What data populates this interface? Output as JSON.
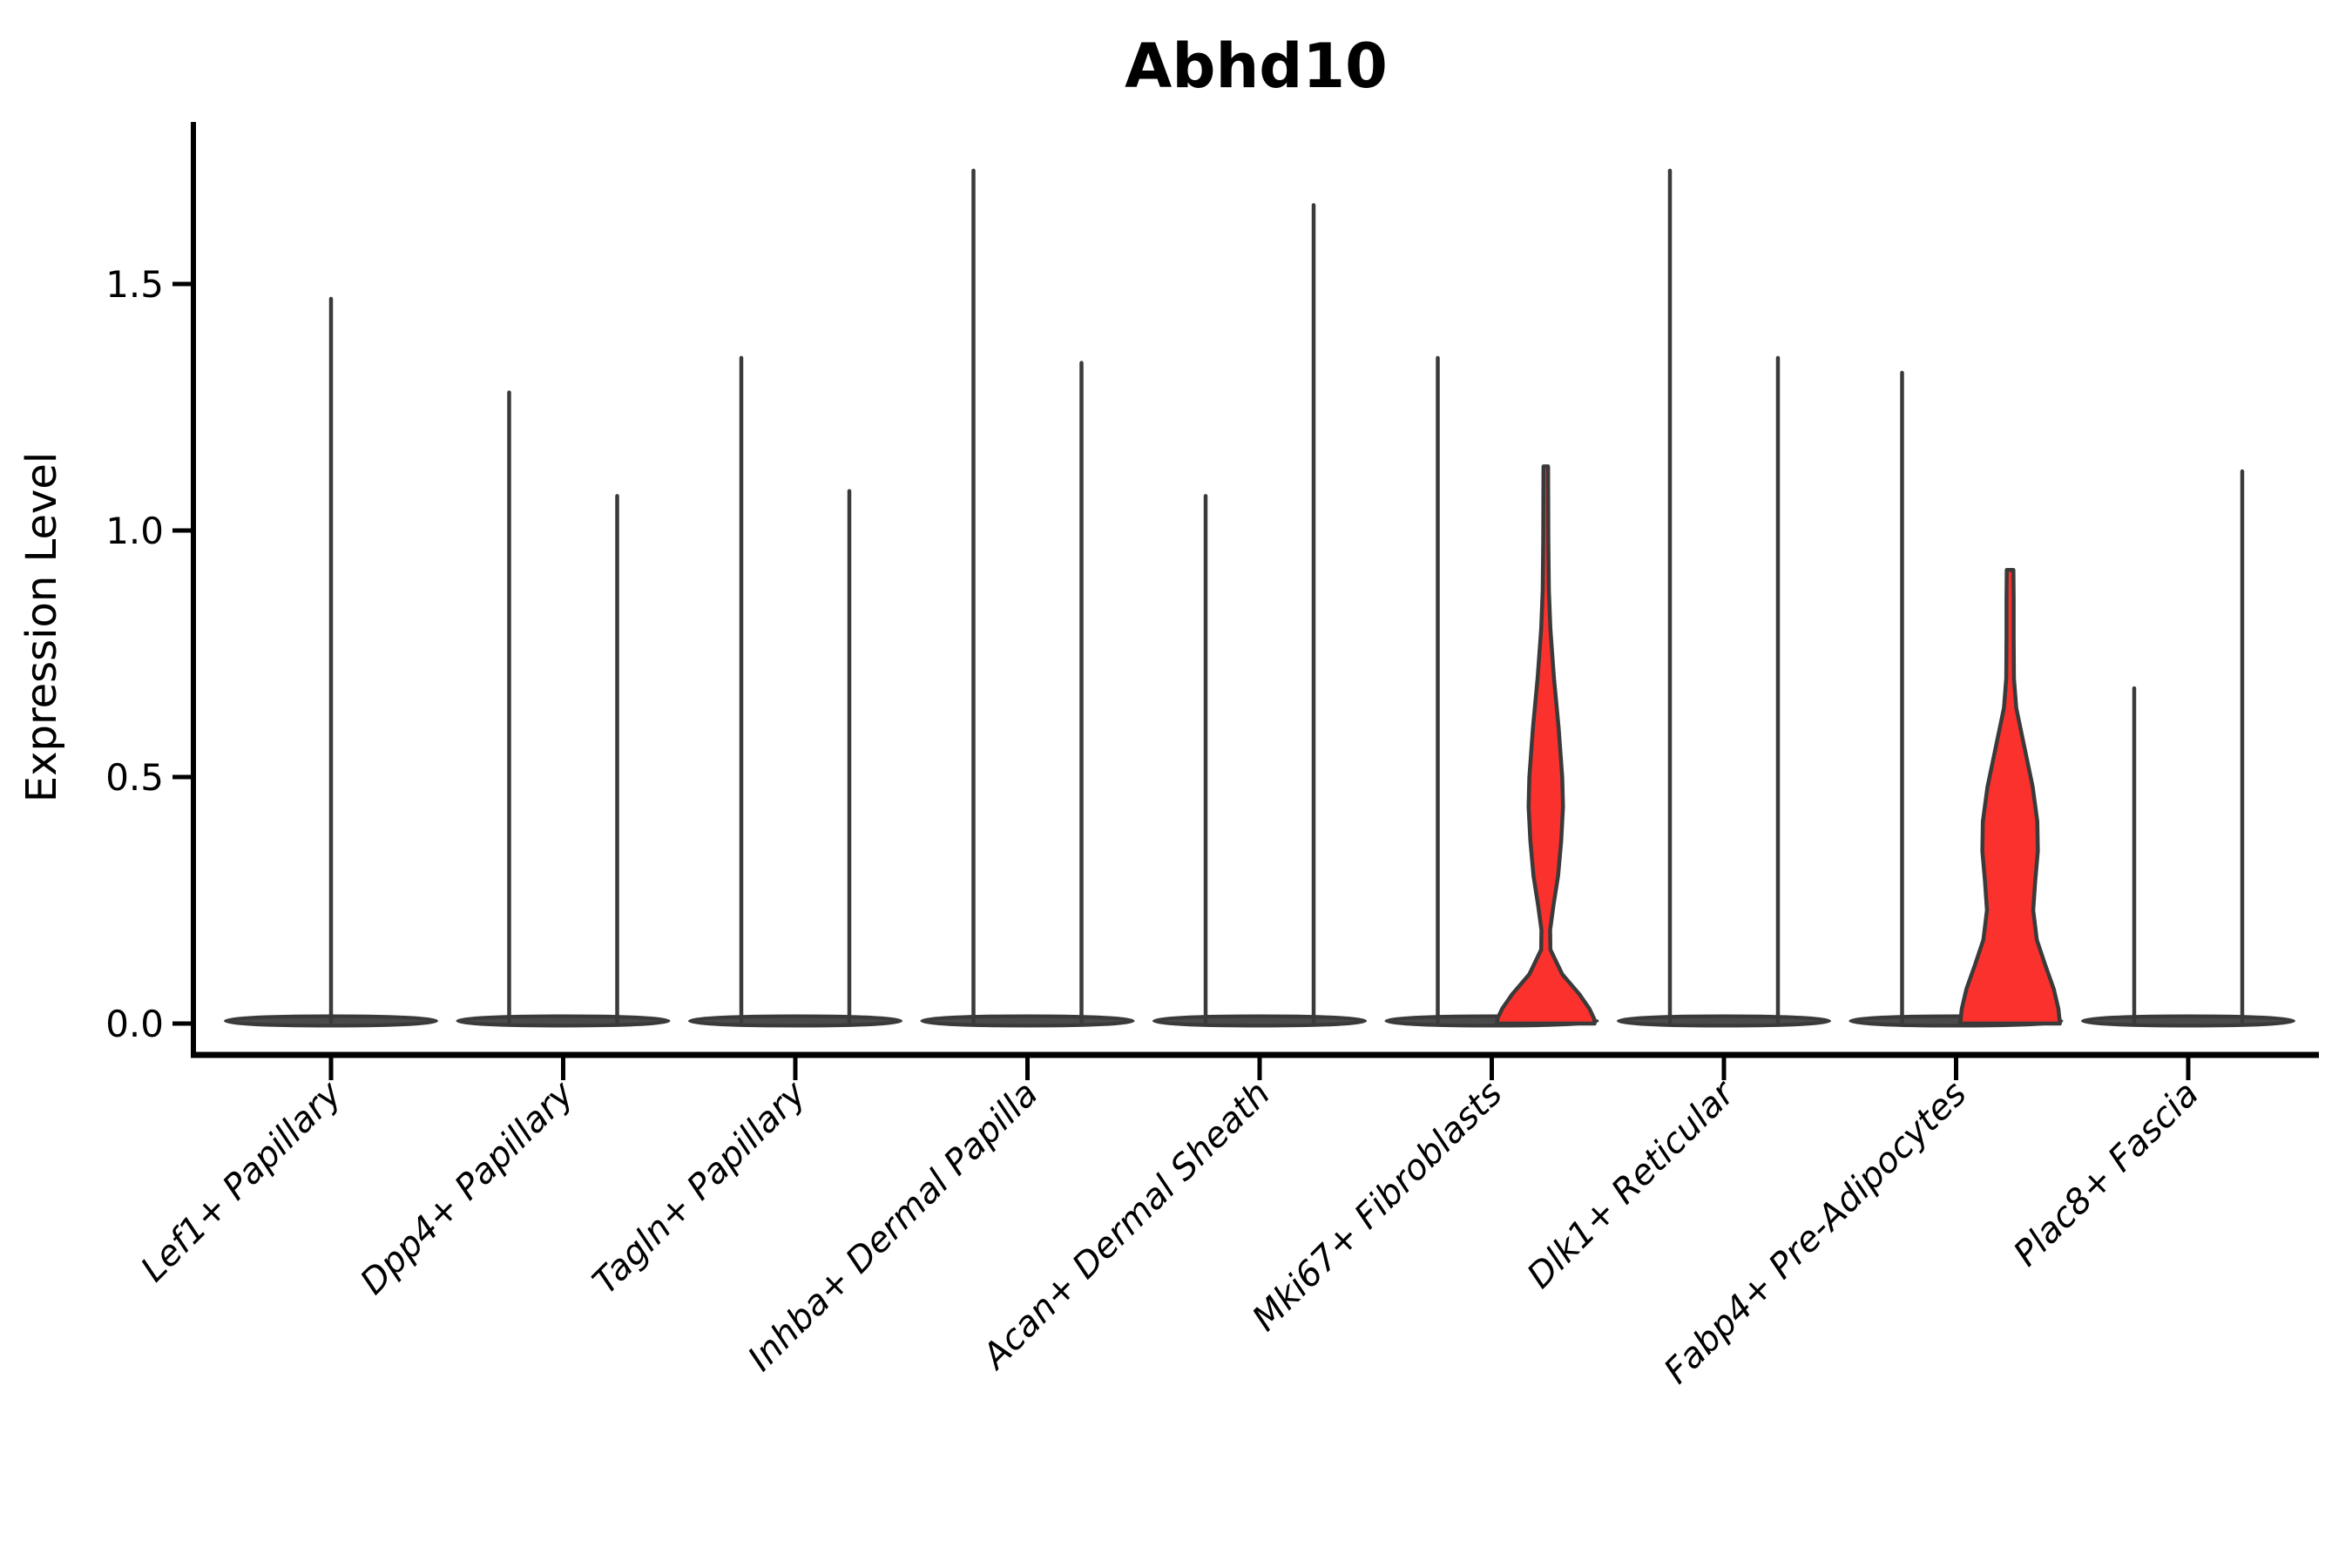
{
  "title": "Abhd10",
  "ylabel": "Expression Level",
  "colors": {
    "violin_fill_highlight": "#fa312c",
    "violin_outline": "#3a3a3a",
    "base_disc_fill": "#4a4a4a",
    "axis": "#000000"
  },
  "chart_data": {
    "type": "violin",
    "title": "Abhd10",
    "xlabel": "",
    "ylabel": "Expression Level",
    "ylim": [
      0,
      1.83
    ],
    "grid": false,
    "legend": "none",
    "y_axis": {
      "tick_values": [
        0,
        0.5,
        1.0,
        1.5
      ],
      "tick_labels": [
        "0.0",
        "0.5",
        "1.0",
        "1.5"
      ]
    },
    "categories": [
      {
        "label": "Lef1+ Papillary",
        "violins": [
          {
            "pos": "center",
            "style": "spike",
            "max": 1.47
          }
        ]
      },
      {
        "label": "Dpp4+ Papillary",
        "violins": [
          {
            "pos": "left",
            "style": "spike",
            "max": 1.28
          },
          {
            "pos": "right",
            "style": "spike",
            "max": 1.07
          }
        ]
      },
      {
        "label": "Tagln+ Papillary",
        "violins": [
          {
            "pos": "left",
            "style": "spike",
            "max": 1.35
          },
          {
            "pos": "right",
            "style": "spike",
            "max": 1.08
          }
        ]
      },
      {
        "label": "Inhba+ Dermal Papilla",
        "violins": [
          {
            "pos": "left",
            "style": "spike",
            "max": 1.73
          },
          {
            "pos": "right",
            "style": "spike",
            "max": 1.34
          }
        ]
      },
      {
        "label": "Acan+ Dermal Sheath",
        "violins": [
          {
            "pos": "left",
            "style": "spike",
            "max": 1.07
          },
          {
            "pos": "right",
            "style": "spike",
            "max": 1.66
          }
        ]
      },
      {
        "label": "Mki67+ Fibroblasts",
        "violins": [
          {
            "pos": "left",
            "style": "spike",
            "max": 1.35
          },
          {
            "pos": "right",
            "style": "body",
            "max": 1.13,
            "fill": "#fa312c",
            "profile": "mki67"
          }
        ]
      },
      {
        "label": "Dlk1+ Reticular",
        "violins": [
          {
            "pos": "left",
            "style": "spike",
            "max": 1.73
          },
          {
            "pos": "right",
            "style": "spike",
            "max": 1.35
          }
        ]
      },
      {
        "label": "Fabp4+ Pre-Adipocytes",
        "violins": [
          {
            "pos": "left",
            "style": "spike",
            "max": 1.32
          },
          {
            "pos": "right",
            "style": "body",
            "max": 0.92,
            "fill": "#fa312c",
            "profile": "fabp4"
          }
        ]
      },
      {
        "label": "Plac8+ Fascia",
        "violins": [
          {
            "pos": "left",
            "style": "spike",
            "max": 0.68
          },
          {
            "pos": "right",
            "style": "spike",
            "max": 1.12
          }
        ]
      }
    ],
    "profiles": {
      "mki67": [
        [
          1.13,
          0.045
        ],
        [
          0.98,
          0.05
        ],
        [
          0.88,
          0.06
        ],
        [
          0.8,
          0.09
        ],
        [
          0.7,
          0.16
        ],
        [
          0.6,
          0.25
        ],
        [
          0.5,
          0.32
        ],
        [
          0.44,
          0.335
        ],
        [
          0.37,
          0.3
        ],
        [
          0.3,
          0.24
        ],
        [
          0.24,
          0.15
        ],
        [
          0.19,
          0.085
        ],
        [
          0.15,
          0.09
        ],
        [
          0.1,
          0.32
        ],
        [
          0.06,
          0.65
        ],
        [
          0.03,
          0.85
        ],
        [
          0.01,
          0.94
        ],
        [
          0.0,
          0.95
        ]
      ],
      "fabp4": [
        [
          0.92,
          0.065
        ],
        [
          0.86,
          0.07
        ],
        [
          0.78,
          0.07
        ],
        [
          0.7,
          0.075
        ],
        [
          0.64,
          0.12
        ],
        [
          0.56,
          0.28
        ],
        [
          0.48,
          0.44
        ],
        [
          0.41,
          0.53
        ],
        [
          0.35,
          0.54
        ],
        [
          0.29,
          0.49
        ],
        [
          0.23,
          0.45
        ],
        [
          0.17,
          0.52
        ],
        [
          0.12,
          0.68
        ],
        [
          0.07,
          0.85
        ],
        [
          0.03,
          0.94
        ],
        [
          0.0,
          0.97
        ]
      ]
    }
  }
}
